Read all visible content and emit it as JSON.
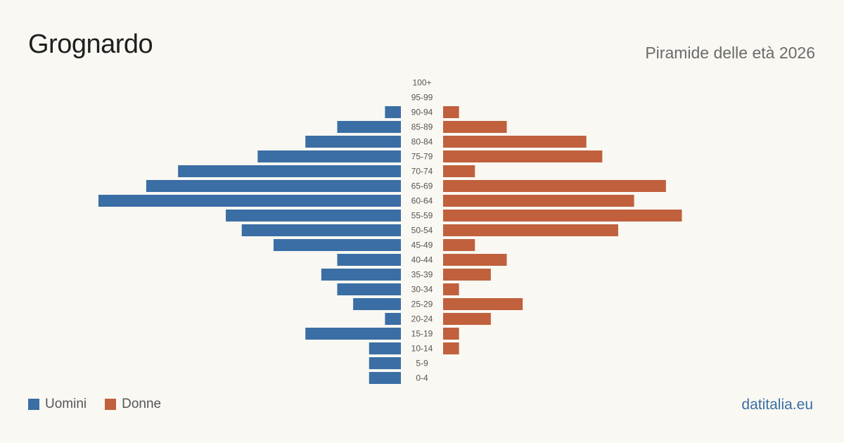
{
  "header": {
    "title": "Grognardo",
    "subtitle": "Piramide delle età 2026"
  },
  "legend": {
    "men_label": "Uomini",
    "women_label": "Donne"
  },
  "brand": "datitalia.eu",
  "colors": {
    "men": "#3a6ea5",
    "women": "#c0603d",
    "background": "#faf8f3",
    "label": "#555555"
  },
  "chart_data": {
    "type": "bar",
    "orientation": "horizontal-pyramid",
    "categories": [
      "100+",
      "95-99",
      "90-94",
      "85-89",
      "80-84",
      "75-79",
      "70-74",
      "65-69",
      "60-64",
      "55-59",
      "50-54",
      "45-49",
      "40-44",
      "35-39",
      "30-34",
      "25-29",
      "20-24",
      "15-19",
      "10-14",
      "5-9",
      "0-4"
    ],
    "series": [
      {
        "name": "Uomini",
        "values": [
          0,
          0,
          1,
          4,
          6,
          9,
          14,
          16,
          19,
          11,
          10,
          8,
          4,
          5,
          4,
          3,
          1,
          6,
          2,
          2,
          2
        ]
      },
      {
        "name": "Donne",
        "values": [
          0,
          0,
          1,
          4,
          9,
          10,
          2,
          14,
          12,
          15,
          11,
          2,
          4,
          3,
          1,
          5,
          3,
          1,
          1,
          0,
          0
        ]
      }
    ],
    "xlim": [
      0,
      19
    ],
    "legend": "bottom-left"
  }
}
